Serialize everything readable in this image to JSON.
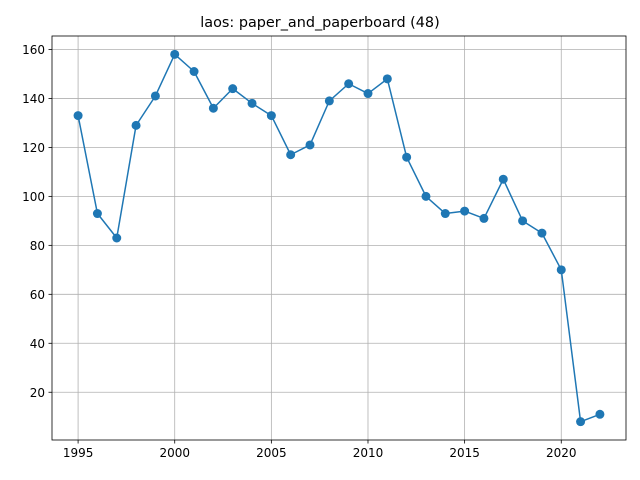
{
  "chart_data": {
    "type": "line",
    "title": "laos: paper_and_paperboard (48)",
    "xlabel": "",
    "ylabel": "",
    "x": [
      1995,
      1996,
      1997,
      1998,
      1999,
      2000,
      2001,
      2002,
      2003,
      2004,
      2005,
      2006,
      2007,
      2008,
      2009,
      2010,
      2011,
      2012,
      2013,
      2014,
      2015,
      2016,
      2017,
      2018,
      2019,
      2020,
      2021,
      2022
    ],
    "series": [
      {
        "values": [
          133,
          93,
          83,
          129,
          141,
          158,
          151,
          136,
          144,
          138,
          133,
          117,
          121,
          139,
          146,
          142,
          148,
          116,
          100,
          93,
          94,
          91,
          107,
          90,
          85,
          70,
          8,
          11
        ]
      }
    ],
    "xlim": [
      1993.65,
      2023.35
    ],
    "ylim": [
      0.5,
      165.5
    ],
    "xticks": [
      "1995",
      "2000",
      "2005",
      "2010",
      "2015",
      "2020"
    ],
    "yticks": [
      "20",
      "40",
      "60",
      "80",
      "100",
      "120",
      "140",
      "160"
    ],
    "grid": true,
    "legend": "none",
    "colors": {
      "series": "#1f77b4",
      "grid": "#b0b0b0",
      "axes": "#000000"
    }
  }
}
